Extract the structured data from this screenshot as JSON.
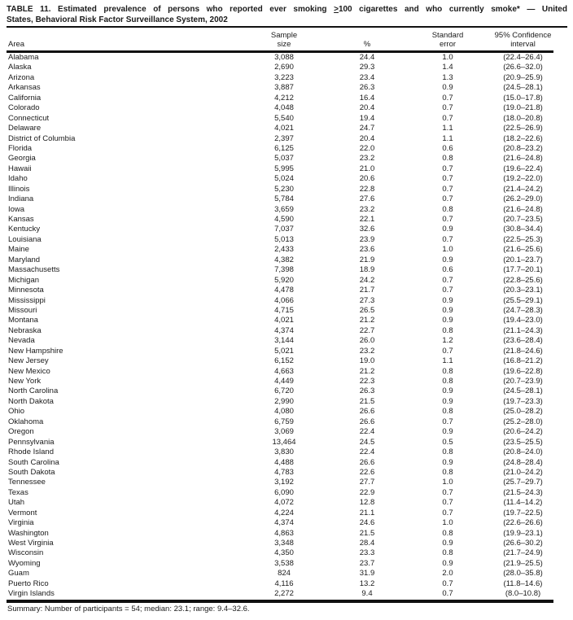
{
  "title": {
    "line1_pre": "TABLE 11. Estimated prevalence of persons who reported ever smoking ",
    "gte_symbol": ">",
    "line1_post": "100 cigarettes and who currently smoke* — United",
    "line2": "States, Behavioral Risk Factor Surveillance System, 2002"
  },
  "table": {
    "columns": {
      "area": "Area",
      "sample_line1": "Sample",
      "sample_line2": "size",
      "percent": "%",
      "se_line1": "Standard",
      "se_line2": "error",
      "ci_line1": "95% Confidence",
      "ci_line2": "interval"
    },
    "rows": [
      {
        "area": "Alabama",
        "sample_size": "3,088",
        "percent": "24.4",
        "standard_error": "1.0",
        "confidence_interval": "(22.4–26.4)"
      },
      {
        "area": "Alaska",
        "sample_size": "2,690",
        "percent": "29.3",
        "standard_error": "1.4",
        "confidence_interval": "(26.6–32.0)"
      },
      {
        "area": "Arizona",
        "sample_size": "3,223",
        "percent": "23.4",
        "standard_error": "1.3",
        "confidence_interval": "(20.9–25.9)"
      },
      {
        "area": "Arkansas",
        "sample_size": "3,887",
        "percent": "26.3",
        "standard_error": "0.9",
        "confidence_interval": "(24.5–28.1)"
      },
      {
        "area": "California",
        "sample_size": "4,212",
        "percent": "16.4",
        "standard_error": "0.7",
        "confidence_interval": "(15.0–17.8)"
      },
      {
        "area": "Colorado",
        "sample_size": "4,048",
        "percent": "20.4",
        "standard_error": "0.7",
        "confidence_interval": "(19.0–21.8)"
      },
      {
        "area": "Connecticut",
        "sample_size": "5,540",
        "percent": "19.4",
        "standard_error": "0.7",
        "confidence_interval": "(18.0–20.8)"
      },
      {
        "area": "Delaware",
        "sample_size": "4,021",
        "percent": "24.7",
        "standard_error": "1.1",
        "confidence_interval": "(22.5–26.9)"
      },
      {
        "area": "District of Columbia",
        "sample_size": "2,397",
        "percent": "20.4",
        "standard_error": "1.1",
        "confidence_interval": "(18.2–22.6)"
      },
      {
        "area": "Florida",
        "sample_size": "6,125",
        "percent": "22.0",
        "standard_error": "0.6",
        "confidence_interval": "(20.8–23.2)"
      },
      {
        "area": "Georgia",
        "sample_size": "5,037",
        "percent": "23.2",
        "standard_error": "0.8",
        "confidence_interval": "(21.6–24.8)"
      },
      {
        "area": "Hawaii",
        "sample_size": "5,995",
        "percent": "21.0",
        "standard_error": "0.7",
        "confidence_interval": "(19.6–22.4)"
      },
      {
        "area": "Idaho",
        "sample_size": "5,024",
        "percent": "20.6",
        "standard_error": "0.7",
        "confidence_interval": "(19.2–22.0)"
      },
      {
        "area": "Illinois",
        "sample_size": "5,230",
        "percent": "22.8",
        "standard_error": "0.7",
        "confidence_interval": "(21.4–24.2)"
      },
      {
        "area": "Indiana",
        "sample_size": "5,784",
        "percent": "27.6",
        "standard_error": "0.7",
        "confidence_interval": "(26.2–29.0)"
      },
      {
        "area": "Iowa",
        "sample_size": "3,659",
        "percent": "23.2",
        "standard_error": "0.8",
        "confidence_interval": "(21.6–24.8)"
      },
      {
        "area": "Kansas",
        "sample_size": "4,590",
        "percent": "22.1",
        "standard_error": "0.7",
        "confidence_interval": "(20.7–23.5)"
      },
      {
        "area": "Kentucky",
        "sample_size": "7,037",
        "percent": "32.6",
        "standard_error": "0.9",
        "confidence_interval": "(30.8–34.4)"
      },
      {
        "area": "Louisiana",
        "sample_size": "5,013",
        "percent": "23.9",
        "standard_error": "0.7",
        "confidence_interval": "(22.5–25.3)"
      },
      {
        "area": "Maine",
        "sample_size": "2,433",
        "percent": "23.6",
        "standard_error": "1.0",
        "confidence_interval": "(21.6–25.6)"
      },
      {
        "area": "Maryland",
        "sample_size": "4,382",
        "percent": "21.9",
        "standard_error": "0.9",
        "confidence_interval": "(20.1–23.7)"
      },
      {
        "area": "Massachusetts",
        "sample_size": "7,398",
        "percent": "18.9",
        "standard_error": "0.6",
        "confidence_interval": "(17.7–20.1)"
      },
      {
        "area": "Michigan",
        "sample_size": "5,920",
        "percent": "24.2",
        "standard_error": "0.7",
        "confidence_interval": "(22.8–25.6)"
      },
      {
        "area": "Minnesota",
        "sample_size": "4,478",
        "percent": "21.7",
        "standard_error": "0.7",
        "confidence_interval": "(20.3–23.1)"
      },
      {
        "area": "Mississippi",
        "sample_size": "4,066",
        "percent": "27.3",
        "standard_error": "0.9",
        "confidence_interval": "(25.5–29.1)"
      },
      {
        "area": "Missouri",
        "sample_size": "4,715",
        "percent": "26.5",
        "standard_error": "0.9",
        "confidence_interval": "(24.7–28.3)"
      },
      {
        "area": "Montana",
        "sample_size": "4,021",
        "percent": "21.2",
        "standard_error": "0.9",
        "confidence_interval": "(19.4–23.0)"
      },
      {
        "area": "Nebraska",
        "sample_size": "4,374",
        "percent": "22.7",
        "standard_error": "0.8",
        "confidence_interval": "(21.1–24.3)"
      },
      {
        "area": "Nevada",
        "sample_size": "3,144",
        "percent": "26.0",
        "standard_error": "1.2",
        "confidence_interval": "(23.6–28.4)"
      },
      {
        "area": "New Hampshire",
        "sample_size": "5,021",
        "percent": "23.2",
        "standard_error": "0.7",
        "confidence_interval": "(21.8–24.6)"
      },
      {
        "area": "New Jersey",
        "sample_size": "6,152",
        "percent": "19.0",
        "standard_error": "1.1",
        "confidence_interval": "(16.8–21.2)"
      },
      {
        "area": "New Mexico",
        "sample_size": "4,663",
        "percent": "21.2",
        "standard_error": "0.8",
        "confidence_interval": "(19.6–22.8)"
      },
      {
        "area": "New York",
        "sample_size": "4,449",
        "percent": "22.3",
        "standard_error": "0.8",
        "confidence_interval": "(20.7–23.9)"
      },
      {
        "area": "North Carolina",
        "sample_size": "6,720",
        "percent": "26.3",
        "standard_error": "0.9",
        "confidence_interval": "(24.5–28.1)"
      },
      {
        "area": "North Dakota",
        "sample_size": "2,990",
        "percent": "21.5",
        "standard_error": "0.9",
        "confidence_interval": "(19.7–23.3)"
      },
      {
        "area": "Ohio",
        "sample_size": "4,080",
        "percent": "26.6",
        "standard_error": "0.8",
        "confidence_interval": "(25.0–28.2)"
      },
      {
        "area": "Oklahoma",
        "sample_size": "6,759",
        "percent": "26.6",
        "standard_error": "0.7",
        "confidence_interval": "(25.2–28.0)"
      },
      {
        "area": "Oregon",
        "sample_size": "3,069",
        "percent": "22.4",
        "standard_error": "0.9",
        "confidence_interval": "(20.6–24.2)"
      },
      {
        "area": "Pennsylvania",
        "sample_size": "13,464",
        "percent": "24.5",
        "standard_error": "0.5",
        "confidence_interval": "(23.5–25.5)"
      },
      {
        "area": "Rhode Island",
        "sample_size": "3,830",
        "percent": "22.4",
        "standard_error": "0.8",
        "confidence_interval": "(20.8–24.0)"
      },
      {
        "area": "South Carolina",
        "sample_size": "4,488",
        "percent": "26.6",
        "standard_error": "0.9",
        "confidence_interval": "(24.8–28.4)"
      },
      {
        "area": "South Dakota",
        "sample_size": "4,783",
        "percent": "22.6",
        "standard_error": "0.8",
        "confidence_interval": "(21.0–24.2)"
      },
      {
        "area": "Tennessee",
        "sample_size": "3,192",
        "percent": "27.7",
        "standard_error": "1.0",
        "confidence_interval": "(25.7–29.7)"
      },
      {
        "area": "Texas",
        "sample_size": "6,090",
        "percent": "22.9",
        "standard_error": "0.7",
        "confidence_interval": "(21.5–24.3)"
      },
      {
        "area": "Utah",
        "sample_size": "4,072",
        "percent": "12.8",
        "standard_error": "0.7",
        "confidence_interval": "(11.4–14.2)"
      },
      {
        "area": "Vermont",
        "sample_size": "4,224",
        "percent": "21.1",
        "standard_error": "0.7",
        "confidence_interval": "(19.7–22.5)"
      },
      {
        "area": "Virginia",
        "sample_size": "4,374",
        "percent": "24.6",
        "standard_error": "1.0",
        "confidence_interval": "(22.6–26.6)"
      },
      {
        "area": "Washington",
        "sample_size": "4,863",
        "percent": "21.5",
        "standard_error": "0.8",
        "confidence_interval": "(19.9–23.1)"
      },
      {
        "area": "West Virginia",
        "sample_size": "3,348",
        "percent": "28.4",
        "standard_error": "0.9",
        "confidence_interval": "(26.6–30.2)"
      },
      {
        "area": "Wisconsin",
        "sample_size": "4,350",
        "percent": "23.3",
        "standard_error": "0.8",
        "confidence_interval": "(21.7–24.9)"
      },
      {
        "area": "Wyoming",
        "sample_size": "3,538",
        "percent": "23.7",
        "standard_error": "0.9",
        "confidence_interval": "(21.9–25.5)"
      },
      {
        "area": "Guam",
        "sample_size": "824",
        "percent": "31.9",
        "standard_error": "2.0",
        "confidence_interval": "(28.0–35.8)"
      },
      {
        "area": "Puerto Rico",
        "sample_size": "4,116",
        "percent": "13.2",
        "standard_error": "0.7",
        "confidence_interval": "(11.8–14.6)"
      },
      {
        "area": "Virgin Islands",
        "sample_size": "2,272",
        "percent": "9.4",
        "standard_error": "0.7",
        "confidence_interval": "(8.0–10.8)"
      }
    ]
  },
  "summary": "Summary: Number of participants = 54; median: 23.1; range: 9.4–32.6."
}
